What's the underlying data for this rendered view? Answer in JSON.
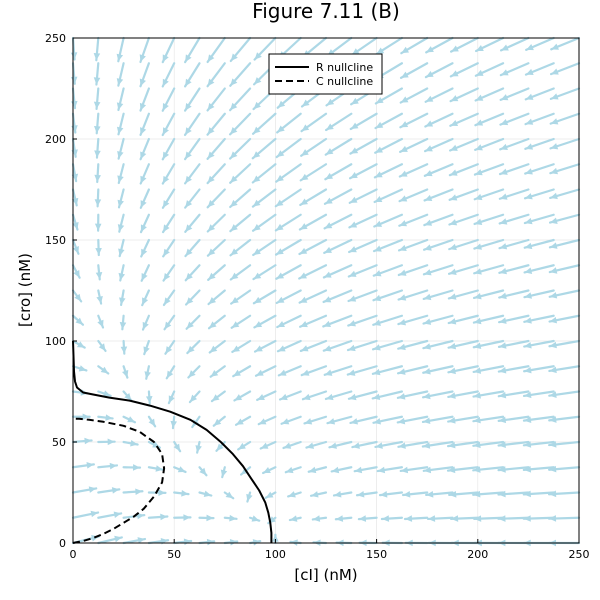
{
  "chart_data": {
    "type": "line",
    "title": "Figure 7.11 (B)",
    "xlabel": "[cI] (nM)",
    "ylabel": "[cro] (nM)",
    "xlim": [
      0,
      250
    ],
    "ylim": [
      0,
      250
    ],
    "xticks": [
      0,
      50,
      100,
      150,
      200,
      250
    ],
    "yticks": [
      0,
      50,
      100,
      150,
      200,
      250
    ],
    "grid": true,
    "legend": {
      "placement": "top-right"
    },
    "series": [
      {
        "name": "R nullcline",
        "style": "solid",
        "color": "#000000",
        "x": [
          98,
          98,
          97.5,
          96.5,
          95,
          92,
          88,
          84,
          79,
          73,
          66,
          58,
          48,
          38,
          28,
          18,
          10,
          5,
          2,
          1,
          0.5,
          0
        ],
        "y": [
          0,
          5,
          10,
          15,
          20,
          26,
          32,
          38,
          44,
          50,
          56,
          61,
          65,
          68,
          70.5,
          72,
          73.5,
          74.5,
          77,
          80,
          85,
          100
        ]
      },
      {
        "name": "C nullcline",
        "style": "dashed",
        "color": "#000000",
        "x": [
          0,
          5,
          10,
          15,
          20,
          25,
          30,
          35,
          40,
          44,
          45,
          44,
          40,
          33,
          25,
          15,
          8,
          3,
          0
        ],
        "y": [
          0,
          1,
          2.5,
          4.5,
          7,
          10,
          13,
          17,
          23,
          30,
          37,
          44,
          50,
          55,
          58,
          60,
          61,
          61.5,
          61.5
        ]
      }
    ],
    "quiver": {
      "color": "#add8e6",
      "spacing": 12.5,
      "model": "toggle-switch"
    }
  }
}
